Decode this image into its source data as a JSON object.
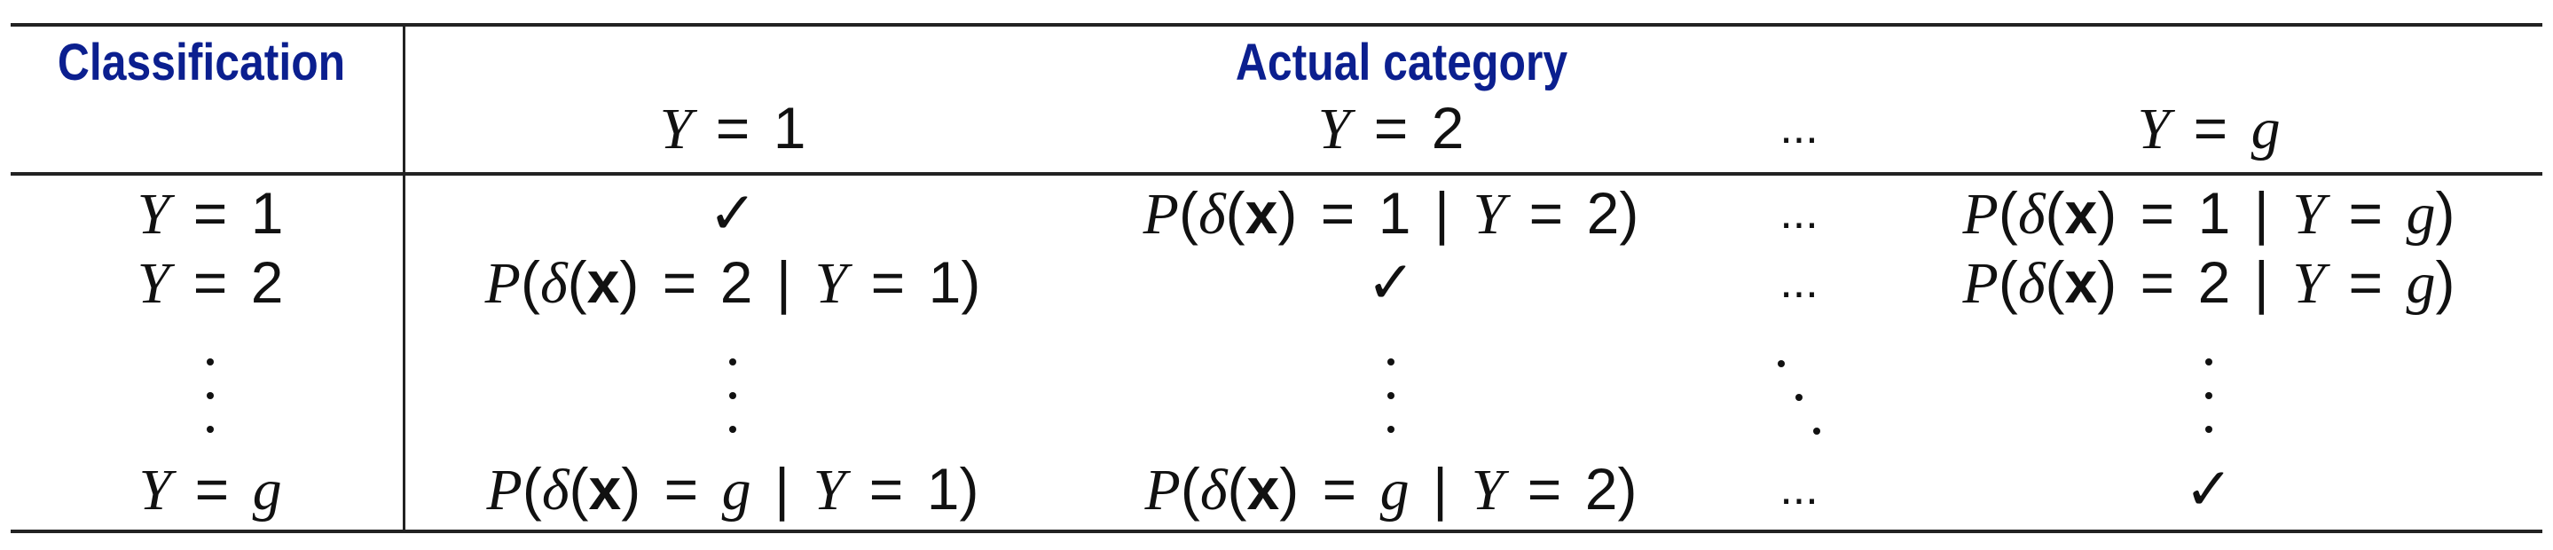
{
  "headers": {
    "classification": "Classification",
    "actual_category": "Actual category"
  },
  "columns": [
    {
      "label": "Y = 1",
      "var": "Y",
      "value": "1"
    },
    {
      "label": "Y = 2",
      "var": "Y",
      "value": "2"
    },
    {
      "label": "...",
      "ellipsis": "..."
    },
    {
      "label": "Y = g",
      "var": "Y",
      "value": "g"
    }
  ],
  "rows": [
    {
      "label": "Y = 1",
      "var": "Y",
      "value": "1",
      "cells": [
        "✓",
        "P(δ(x) = 1 | Y = 2)",
        "...",
        "P(δ(x) = 1 | Y = g)"
      ]
    },
    {
      "label": "Y = 2",
      "var": "Y",
      "value": "2",
      "cells": [
        "P(δ(x) = 2 | Y = 1)",
        "✓",
        "...",
        "P(δ(x) = 2 | Y = g)"
      ]
    },
    {
      "label": "vertical-dots",
      "cells": [
        "vertical-dots",
        "vertical-dots",
        "diagonal-dots",
        "vertical-dots"
      ]
    },
    {
      "label": "Y = g",
      "var": "Y",
      "value": "g",
      "cells": [
        "P(δ(x) = g | Y = 1)",
        "P(δ(x) = g | Y = 2)",
        "...",
        "✓"
      ]
    }
  ],
  "symbols": {
    "check": "✓",
    "ellipsis": "...",
    "P": "P",
    "delta": "δ",
    "x": "x",
    "Y": "Y",
    "eq": "=",
    "bar": "|",
    "lp": "(",
    "rp": ")"
  }
}
